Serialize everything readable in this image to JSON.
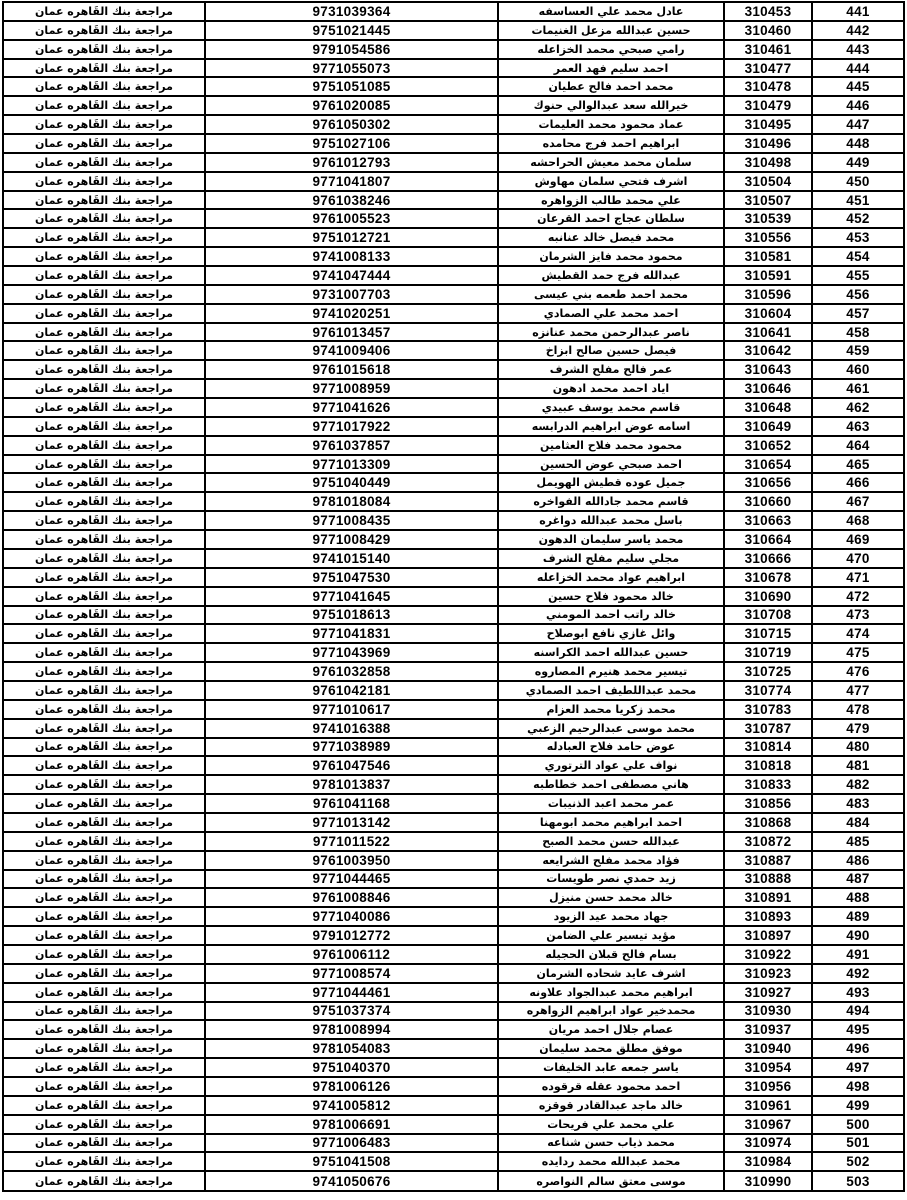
{
  "table": {
    "bank_review_label": "مراجعة بنك القَاهره عمان",
    "rows": [
      {
        "seq": "441",
        "code": "310453",
        "name": "عادل محمد علي العساسفه",
        "national_number": "9731039364"
      },
      {
        "seq": "442",
        "code": "310460",
        "name": "حسين عبدالله مزعل الغنيمات",
        "national_number": "9751021445"
      },
      {
        "seq": "443",
        "code": "310461",
        "name": "رامي صبحي محمد الخزاعله",
        "national_number": "9791054586"
      },
      {
        "seq": "444",
        "code": "310477",
        "name": "احمد سليم فهد العمر",
        "national_number": "9771055073"
      },
      {
        "seq": "445",
        "code": "310478",
        "name": "محمد احمد فالح عطيان",
        "national_number": "9751051085"
      },
      {
        "seq": "446",
        "code": "310479",
        "name": "خيرالله سعد عبدالوالي حنوك",
        "national_number": "9761020085"
      },
      {
        "seq": "447",
        "code": "310495",
        "name": "عماد محمود محمد العليمات",
        "national_number": "9761050302"
      },
      {
        "seq": "448",
        "code": "310496",
        "name": "ابراهيم احمد فرج محامده",
        "national_number": "9751027106"
      },
      {
        "seq": "449",
        "code": "310498",
        "name": "سلمان محمد معيش الحراحشه",
        "national_number": "9761012793"
      },
      {
        "seq": "450",
        "code": "310504",
        "name": "اشرف فتحي سلمان مهاوش",
        "national_number": "9771041807"
      },
      {
        "seq": "451",
        "code": "310507",
        "name": "علي محمد طالب الزواهره",
        "national_number": "9761038246"
      },
      {
        "seq": "452",
        "code": "310539",
        "name": "سلطان عجاج احمد القرعان",
        "national_number": "9761005523"
      },
      {
        "seq": "453",
        "code": "310556",
        "name": "محمد فيصل خالد عنانبه",
        "national_number": "9751012721"
      },
      {
        "seq": "454",
        "code": "310581",
        "name": "محمود محمد فايز الشرمان",
        "national_number": "9741008133"
      },
      {
        "seq": "455",
        "code": "310591",
        "name": "عبدالله فرج حمد القطيش",
        "national_number": "9741047444"
      },
      {
        "seq": "456",
        "code": "310596",
        "name": "محمد احمد طعمه بني عيسى",
        "national_number": "9731007703"
      },
      {
        "seq": "457",
        "code": "310604",
        "name": "احمد محمد علي الصمادي",
        "national_number": "9741020251"
      },
      {
        "seq": "458",
        "code": "310641",
        "name": "ناصر عبدالرحمن محمد عنانزه",
        "national_number": "9761013457"
      },
      {
        "seq": "459",
        "code": "310642",
        "name": "فيصل حسين صالح ابزاخ",
        "national_number": "9741009406"
      },
      {
        "seq": "460",
        "code": "310643",
        "name": "عمر فالح مفلح الشرف",
        "national_number": "9761015618"
      },
      {
        "seq": "461",
        "code": "310646",
        "name": "اياد احمد محمد ادهون",
        "national_number": "9771008959"
      },
      {
        "seq": "462",
        "code": "310648",
        "name": "قاسم محمد يوسف عبيدي",
        "national_number": "9771041626"
      },
      {
        "seq": "463",
        "code": "310649",
        "name": "اسامه عوض ابراهيم الدرابسه",
        "national_number": "9771017922"
      },
      {
        "seq": "464",
        "code": "310652",
        "name": "محمود محمد فلاح العثامين",
        "national_number": "9761037857"
      },
      {
        "seq": "465",
        "code": "310654",
        "name": "احمد صبحي عوض الحسين",
        "national_number": "9771013309"
      },
      {
        "seq": "466",
        "code": "310656",
        "name": "جميل عوده قطيش الهويمل",
        "national_number": "9751040449"
      },
      {
        "seq": "467",
        "code": "310660",
        "name": "قاسم محمد جادالله الفواخره",
        "national_number": "9781018084"
      },
      {
        "seq": "468",
        "code": "310663",
        "name": "باسل محمد عبدالله دواغره",
        "national_number": "9771008435"
      },
      {
        "seq": "469",
        "code": "310664",
        "name": "محمد ياسر سليمان الدهون",
        "national_number": "9771008429"
      },
      {
        "seq": "470",
        "code": "310666",
        "name": "مجلي سليم مفلح الشرف",
        "national_number": "9741015140"
      },
      {
        "seq": "471",
        "code": "310678",
        "name": "ابراهيم عواد محمد الخزاعله",
        "national_number": "9751047530"
      },
      {
        "seq": "472",
        "code": "310690",
        "name": "خالد محمود فلاح حسين",
        "national_number": "9771041645"
      },
      {
        "seq": "473",
        "code": "310708",
        "name": "خالد راتب احمد المومني",
        "national_number": "9751018613"
      },
      {
        "seq": "474",
        "code": "310715",
        "name": "وائل غازي نافع ابوصلاح",
        "national_number": "9771041831"
      },
      {
        "seq": "475",
        "code": "310719",
        "name": "حسين عبدالله احمد الكراسنه",
        "national_number": "9771043969"
      },
      {
        "seq": "476",
        "code": "310725",
        "name": "تيسير محمد هنيرم المصاروه",
        "national_number": "9761032858"
      },
      {
        "seq": "477",
        "code": "310774",
        "name": "محمد عبداللطيف احمد الصمادي",
        "national_number": "9761042181"
      },
      {
        "seq": "478",
        "code": "310783",
        "name": "محمد زكريا محمد العزام",
        "national_number": "9771010617"
      },
      {
        "seq": "479",
        "code": "310787",
        "name": "محمد موسى عبدالرحيم الزعبي",
        "national_number": "9741016388"
      },
      {
        "seq": "480",
        "code": "310814",
        "name": "عوض حامد فلاح العبادله",
        "national_number": "9771038989"
      },
      {
        "seq": "481",
        "code": "310818",
        "name": "نواف علي عواد الترتوري",
        "national_number": "9761047546"
      },
      {
        "seq": "482",
        "code": "310833",
        "name": "هاني مصطفى احمد خطاطبه",
        "national_number": "9781013837"
      },
      {
        "seq": "483",
        "code": "310856",
        "name": "عمر محمد اعبد الذنيبات",
        "national_number": "9761041168"
      },
      {
        "seq": "484",
        "code": "310868",
        "name": "احمد ابراهيم محمد ابومهنا",
        "national_number": "9771013142"
      },
      {
        "seq": "485",
        "code": "310872",
        "name": "عبدالله حسن محمد الصبح",
        "national_number": "9771011522"
      },
      {
        "seq": "486",
        "code": "310887",
        "name": "فؤاد محمد مفلح الشرايعه",
        "national_number": "9761003950"
      },
      {
        "seq": "487",
        "code": "310888",
        "name": "زيد حمدي نصر طويسات",
        "national_number": "9771044465"
      },
      {
        "seq": "488",
        "code": "310891",
        "name": "خالد محمد حسن منيزل",
        "national_number": "9761008846"
      },
      {
        "seq": "489",
        "code": "310893",
        "name": "جهاد محمد عيد الزيود",
        "national_number": "9771040086"
      },
      {
        "seq": "490",
        "code": "310897",
        "name": "مؤيد تيسير علي الضامن",
        "national_number": "9791012772"
      },
      {
        "seq": "491",
        "code": "310922",
        "name": "بسام فالح قبلان الحجيله",
        "national_number": "9761006112"
      },
      {
        "seq": "492",
        "code": "310923",
        "name": "اشرف عايد شحاده الشرمان",
        "national_number": "9771008574"
      },
      {
        "seq": "493",
        "code": "310927",
        "name": "ابراهيم محمد عبدالجواد علاونه",
        "national_number": "9771044461"
      },
      {
        "seq": "494",
        "code": "310930",
        "name": "محمدخير عواد ابراهيم الزواهره",
        "national_number": "9751037374"
      },
      {
        "seq": "495",
        "code": "310937",
        "name": "عصام جلال احمد مريان",
        "national_number": "9781008994"
      },
      {
        "seq": "496",
        "code": "310940",
        "name": "موفق مطلق محمد سليمان",
        "national_number": "9781054083"
      },
      {
        "seq": "497",
        "code": "310954",
        "name": "ياسر جمعه عابد الخليفات",
        "national_number": "9751040370"
      },
      {
        "seq": "498",
        "code": "310956",
        "name": "احمد محمود عقله قرقوده",
        "national_number": "9781006126"
      },
      {
        "seq": "499",
        "code": "310961",
        "name": "خالد ماجد عبدالقادر قوقزه",
        "national_number": "9741005812"
      },
      {
        "seq": "500",
        "code": "310967",
        "name": "علي محمد علي فريحات",
        "national_number": "9781006691"
      },
      {
        "seq": "501",
        "code": "310974",
        "name": "محمد ذياب حسن شناعه",
        "national_number": "9771006483"
      },
      {
        "seq": "502",
        "code": "310984",
        "name": "محمد عبدالله محمد ردايده",
        "national_number": "9751041508"
      },
      {
        "seq": "503",
        "code": "310990",
        "name": "موسى معتق سالم النواصره",
        "national_number": "9741050676"
      }
    ]
  }
}
